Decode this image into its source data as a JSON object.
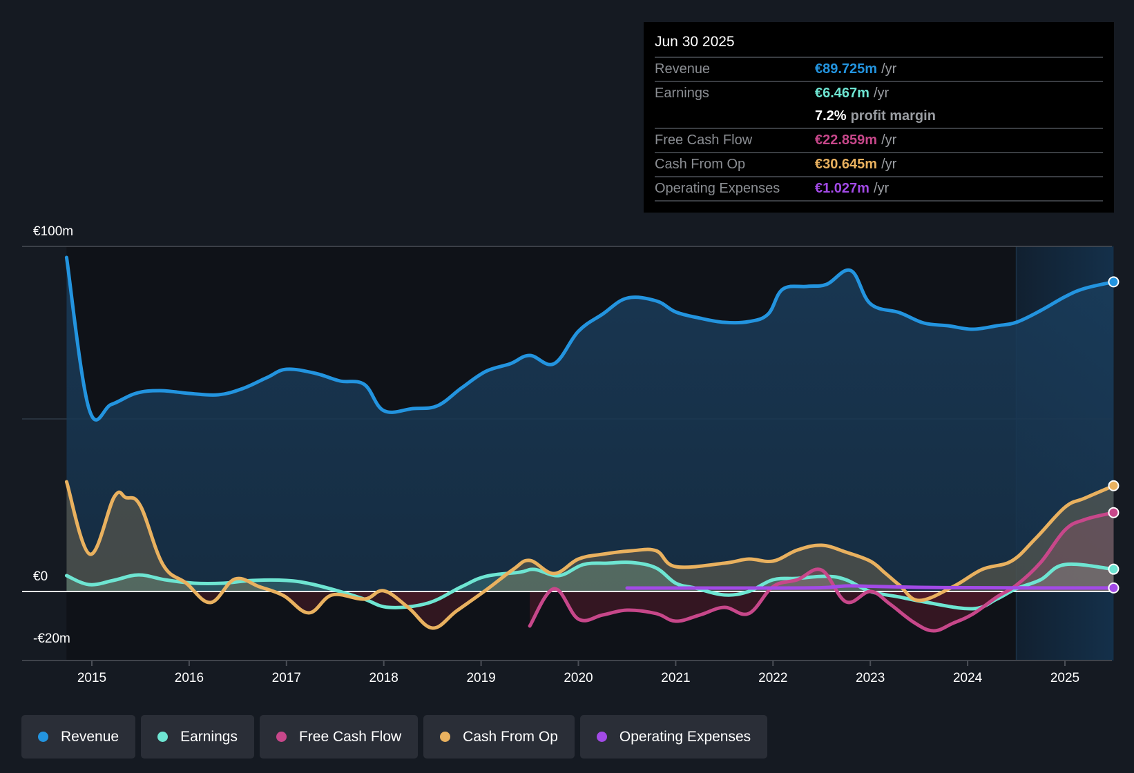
{
  "tooltip": {
    "date": "Jun 30 2025",
    "rows": [
      {
        "label": "Revenue",
        "value": "€89.725m",
        "unit": "/yr",
        "color": "#2394df"
      },
      {
        "label": "Earnings",
        "value": "€6.467m",
        "unit": "/yr",
        "color": "#6ee5d2"
      },
      {
        "label": "",
        "value": "7.2%",
        "unit": "profit margin",
        "color": "#ffffff"
      },
      {
        "label": "Free Cash Flow",
        "value": "€22.859m",
        "unit": "/yr",
        "color": "#c7478a"
      },
      {
        "label": "Cash From Op",
        "value": "€30.645m",
        "unit": "/yr",
        "color": "#e9b15f"
      },
      {
        "label": "Operating Expenses",
        "value": "€1.027m",
        "unit": "/yr",
        "color": "#a24ae6"
      }
    ]
  },
  "legend": [
    {
      "label": "Revenue",
      "color": "#2394df"
    },
    {
      "label": "Earnings",
      "color": "#6ee5d2"
    },
    {
      "label": "Free Cash Flow",
      "color": "#c7478a"
    },
    {
      "label": "Cash From Op",
      "color": "#e9b15f"
    },
    {
      "label": "Operating Expenses",
      "color": "#a24ae6"
    }
  ],
  "chart_data": {
    "type": "area",
    "title": "",
    "xlabel": "",
    "ylabel": "",
    "currency_unit": "€m",
    "xlim": [
      2014.74,
      2025.5
    ],
    "ylim": [
      -20,
      100
    ],
    "x_ticks": [
      2015,
      2016,
      2017,
      2018,
      2019,
      2020,
      2021,
      2022,
      2023,
      2024,
      2025
    ],
    "x_tick_labels": [
      "2015",
      "2016",
      "2017",
      "2018",
      "2019",
      "2020",
      "2021",
      "2022",
      "2023",
      "2024",
      "2025"
    ],
    "y_tick_labels": [
      {
        "value": 100,
        "label": "€100m"
      },
      {
        "value": 0,
        "label": "€0"
      },
      {
        "value": -20,
        "label": "-€20m"
      }
    ],
    "gridlines": [
      100,
      50
    ],
    "highlight_range": [
      2024.5,
      2025.5
    ],
    "legend_position": "bottom",
    "series": [
      {
        "name": "Revenue",
        "color": "#2394df",
        "points": [
          [
            2014.74,
            96.8
          ],
          [
            2014.97,
            53.0
          ],
          [
            2015.2,
            54.2
          ],
          [
            2015.45,
            57.4
          ],
          [
            2015.7,
            58.2
          ],
          [
            2016.0,
            57.4
          ],
          [
            2016.3,
            57.0
          ],
          [
            2016.55,
            58.8
          ],
          [
            2016.8,
            62.0
          ],
          [
            2017.0,
            64.4
          ],
          [
            2017.3,
            63.2
          ],
          [
            2017.55,
            61.0
          ],
          [
            2017.8,
            60.0
          ],
          [
            2018.0,
            52.4
          ],
          [
            2018.3,
            53.0
          ],
          [
            2018.55,
            53.8
          ],
          [
            2018.8,
            59.0
          ],
          [
            2019.05,
            63.8
          ],
          [
            2019.3,
            66.0
          ],
          [
            2019.5,
            68.4
          ],
          [
            2019.75,
            66.0
          ],
          [
            2020.0,
            75.4
          ],
          [
            2020.25,
            80.4
          ],
          [
            2020.5,
            85.0
          ],
          [
            2020.8,
            84.2
          ],
          [
            2021.0,
            81.0
          ],
          [
            2021.25,
            79.2
          ],
          [
            2021.5,
            78.0
          ],
          [
            2021.75,
            78.2
          ],
          [
            2021.95,
            80.4
          ],
          [
            2022.1,
            87.6
          ],
          [
            2022.35,
            88.4
          ],
          [
            2022.55,
            89.0
          ],
          [
            2022.8,
            93.0
          ],
          [
            2023.0,
            83.4
          ],
          [
            2023.3,
            80.8
          ],
          [
            2023.55,
            77.8
          ],
          [
            2023.8,
            77.0
          ],
          [
            2024.05,
            76.0
          ],
          [
            2024.3,
            77.0
          ],
          [
            2024.5,
            78.0
          ],
          [
            2024.75,
            81.4
          ],
          [
            2025.0,
            85.4
          ],
          [
            2025.2,
            87.8
          ],
          [
            2025.5,
            89.725
          ]
        ]
      },
      {
        "name": "Earnings",
        "color": "#6ee5d2",
        "points": [
          [
            2014.74,
            4.6
          ],
          [
            2014.97,
            2.0
          ],
          [
            2015.22,
            3.2
          ],
          [
            2015.48,
            4.8
          ],
          [
            2015.75,
            3.4
          ],
          [
            2016.05,
            2.4
          ],
          [
            2016.35,
            2.4
          ],
          [
            2016.65,
            3.2
          ],
          [
            2017.0,
            3.2
          ],
          [
            2017.25,
            2.2
          ],
          [
            2017.55,
            0.0
          ],
          [
            2017.8,
            -2.2
          ],
          [
            2018.05,
            -4.6
          ],
          [
            2018.45,
            -3.4
          ],
          [
            2018.8,
            1.4
          ],
          [
            2019.05,
            4.4
          ],
          [
            2019.4,
            5.6
          ],
          [
            2019.55,
            6.4
          ],
          [
            2019.8,
            4.6
          ],
          [
            2020.05,
            7.8
          ],
          [
            2020.3,
            8.2
          ],
          [
            2020.55,
            8.4
          ],
          [
            2020.8,
            6.8
          ],
          [
            2021.0,
            2.4
          ],
          [
            2021.2,
            1.0
          ],
          [
            2021.5,
            -1.0
          ],
          [
            2021.75,
            0.0
          ],
          [
            2022.0,
            3.4
          ],
          [
            2022.25,
            3.8
          ],
          [
            2022.55,
            4.4
          ],
          [
            2022.75,
            3.4
          ],
          [
            2023.0,
            0.0
          ],
          [
            2023.3,
            -1.6
          ],
          [
            2023.55,
            -3.0
          ],
          [
            2024.05,
            -5.0
          ],
          [
            2024.3,
            -2.2
          ],
          [
            2024.5,
            0.8
          ],
          [
            2024.75,
            3.4
          ],
          [
            2025.0,
            7.8
          ],
          [
            2025.5,
            6.467
          ]
        ]
      },
      {
        "name": "Free Cash Flow",
        "color": "#c7478a",
        "points": [
          [
            2019.5,
            -10.0
          ],
          [
            2019.75,
            0.8
          ],
          [
            2020.0,
            -8.0
          ],
          [
            2020.25,
            -6.8
          ],
          [
            2020.5,
            -5.4
          ],
          [
            2020.8,
            -6.4
          ],
          [
            2021.0,
            -8.6
          ],
          [
            2021.25,
            -6.8
          ],
          [
            2021.5,
            -4.6
          ],
          [
            2021.75,
            -6.4
          ],
          [
            2022.0,
            1.4
          ],
          [
            2022.25,
            3.4
          ],
          [
            2022.5,
            6.2
          ],
          [
            2022.75,
            -3.0
          ],
          [
            2023.0,
            0.0
          ],
          [
            2023.2,
            -3.6
          ],
          [
            2023.45,
            -9.0
          ],
          [
            2023.65,
            -11.4
          ],
          [
            2023.85,
            -9.2
          ],
          [
            2024.05,
            -6.6
          ],
          [
            2024.3,
            -1.6
          ],
          [
            2024.5,
            1.8
          ],
          [
            2024.75,
            8.4
          ],
          [
            2025.0,
            17.8
          ],
          [
            2025.2,
            20.8
          ],
          [
            2025.5,
            22.859
          ]
        ]
      },
      {
        "name": "Cash From Op",
        "color": "#e9b15f",
        "points": [
          [
            2014.74,
            31.8
          ],
          [
            2014.98,
            10.8
          ],
          [
            2015.23,
            27.4
          ],
          [
            2015.35,
            27.2
          ],
          [
            2015.5,
            24.8
          ],
          [
            2015.73,
            7.8
          ],
          [
            2015.97,
            2.4
          ],
          [
            2016.22,
            -3.2
          ],
          [
            2016.47,
            3.6
          ],
          [
            2016.72,
            1.4
          ],
          [
            2016.97,
            -1.2
          ],
          [
            2017.23,
            -6.2
          ],
          [
            2017.47,
            -1.0
          ],
          [
            2017.8,
            -2.2
          ],
          [
            2018.0,
            0.2
          ],
          [
            2018.25,
            -4.6
          ],
          [
            2018.5,
            -10.6
          ],
          [
            2018.75,
            -5.6
          ],
          [
            2019.05,
            0.4
          ],
          [
            2019.33,
            6.4
          ],
          [
            2019.5,
            9.0
          ],
          [
            2019.75,
            5.2
          ],
          [
            2020.0,
            9.4
          ],
          [
            2020.25,
            10.8
          ],
          [
            2020.55,
            11.8
          ],
          [
            2020.8,
            11.8
          ],
          [
            2021.0,
            7.2
          ],
          [
            2021.5,
            8.2
          ],
          [
            2021.75,
            9.4
          ],
          [
            2022.0,
            8.8
          ],
          [
            2022.25,
            12.0
          ],
          [
            2022.5,
            13.4
          ],
          [
            2022.75,
            11.4
          ],
          [
            2023.0,
            8.8
          ],
          [
            2023.15,
            5.4
          ],
          [
            2023.3,
            1.8
          ],
          [
            2023.5,
            -2.6
          ],
          [
            2023.85,
            1.4
          ],
          [
            2024.15,
            6.4
          ],
          [
            2024.45,
            8.8
          ],
          [
            2024.7,
            15.4
          ],
          [
            2025.0,
            24.4
          ],
          [
            2025.2,
            27.0
          ],
          [
            2025.5,
            30.645
          ]
        ]
      },
      {
        "name": "Operating Expenses",
        "color": "#a24ae6",
        "points": [
          [
            2020.5,
            1.0
          ],
          [
            2021.0,
            1.0
          ],
          [
            2021.5,
            1.0
          ],
          [
            2022.0,
            1.0
          ],
          [
            2022.5,
            1.1
          ],
          [
            2022.75,
            1.6
          ],
          [
            2023.0,
            1.5
          ],
          [
            2023.5,
            1.2
          ],
          [
            2024.0,
            1.1
          ],
          [
            2024.5,
            1.05
          ],
          [
            2025.0,
            1.03
          ],
          [
            2025.5,
            1.027
          ]
        ]
      }
    ]
  }
}
